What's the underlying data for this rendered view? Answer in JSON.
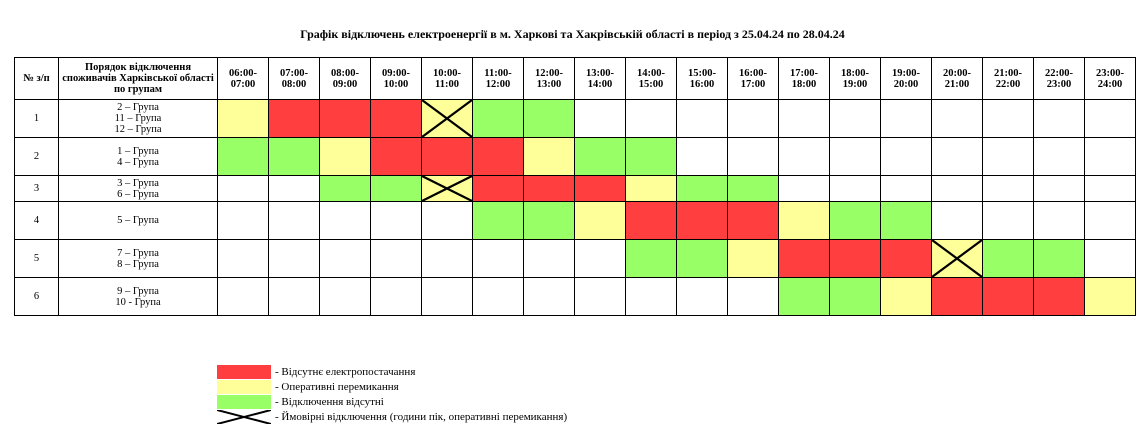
{
  "title": "Графік відключень електроенергії в м. Харкові та Хакрівській області в період з 25.04.24 по 28.04.24",
  "table": {
    "header_num": "№ з/п",
    "header_groups": "Порядок відключення споживачів Харківської області по групам",
    "hours": [
      {
        "from": "06:00-",
        "to": "07:00"
      },
      {
        "from": "07:00-",
        "to": "08:00"
      },
      {
        "from": "08:00-",
        "to": "09:00"
      },
      {
        "from": "09:00-",
        "to": "10:00"
      },
      {
        "from": "10:00-",
        "to": "11:00"
      },
      {
        "from": "11:00-",
        "to": "12:00"
      },
      {
        "from": "12:00-",
        "to": "13:00"
      },
      {
        "from": "13:00-",
        "to": "14:00"
      },
      {
        "from": "14:00-",
        "to": "15:00"
      },
      {
        "from": "15:00-",
        "to": "16:00"
      },
      {
        "from": "16:00-",
        "to": "17:00"
      },
      {
        "from": "17:00-",
        "to": "18:00"
      },
      {
        "from": "18:00-",
        "to": "19:00"
      },
      {
        "from": "19:00-",
        "to": "20:00"
      },
      {
        "from": "20:00-",
        "to": "21:00"
      },
      {
        "from": "21:00-",
        "to": "22:00"
      },
      {
        "from": "22:00-",
        "to": "23:00"
      },
      {
        "from": "23:00-",
        "to": "24:00"
      }
    ],
    "rows": [
      {
        "num": "1",
        "groups": [
          "2 – Група",
          "11 – Група",
          "12 – Група"
        ],
        "cells": [
          "Y",
          "R",
          "R",
          "R",
          "YX",
          "G",
          "G",
          "W",
          "W",
          "W",
          "W",
          "W",
          "W",
          "W",
          "W",
          "W",
          "W",
          "W"
        ]
      },
      {
        "num": "2",
        "groups": [
          "1 – Група",
          "4 – Група"
        ],
        "cells": [
          "G",
          "G",
          "Y",
          "R",
          "R",
          "R",
          "Y",
          "G",
          "G",
          "W",
          "W",
          "W",
          "W",
          "W",
          "W",
          "W",
          "W",
          "W"
        ]
      },
      {
        "num": "3",
        "groups": [
          "3 – Група",
          "6 – Група"
        ],
        "cells": [
          "W",
          "W",
          "G",
          "G",
          "YX",
          "R",
          "R",
          "R",
          "Y",
          "G",
          "G",
          "W",
          "W",
          "W",
          "W",
          "W",
          "W",
          "W"
        ]
      },
      {
        "num": "4",
        "groups": [
          "5 – Група"
        ],
        "cells": [
          "W",
          "W",
          "W",
          "W",
          "W",
          "G",
          "G",
          "Y",
          "R",
          "R",
          "R",
          "Y",
          "G",
          "G",
          "W",
          "W",
          "W",
          "W"
        ]
      },
      {
        "num": "5",
        "groups": [
          "7 – Група",
          "8 – Група"
        ],
        "cells": [
          "W",
          "W",
          "W",
          "W",
          "W",
          "W",
          "W",
          "W",
          "G",
          "G",
          "Y",
          "R",
          "R",
          "R",
          "YX",
          "G",
          "G",
          "W"
        ]
      },
      {
        "num": "6",
        "groups": [
          "9 – Група",
          "10 - Група"
        ],
        "cells": [
          "W",
          "W",
          "W",
          "W",
          "W",
          "W",
          "W",
          "W",
          "W",
          "W",
          "W",
          "G",
          "G",
          "Y",
          "R",
          "R",
          "R",
          "Y"
        ]
      }
    ]
  },
  "colors": {
    "R": "#ff3f3f",
    "Y": "#ffff99",
    "G": "#99ff66",
    "W": "#ffffff"
  },
  "legend": [
    {
      "key": "R",
      "label": "- Відсутнє електропостачання"
    },
    {
      "key": "Y",
      "label": "- Оперативні перемикання"
    },
    {
      "key": "G",
      "label": "- Відключення відсутні"
    },
    {
      "key": "X",
      "label": "- Ймовірні відключення (години пік, оперативні перемикання)"
    }
  ]
}
